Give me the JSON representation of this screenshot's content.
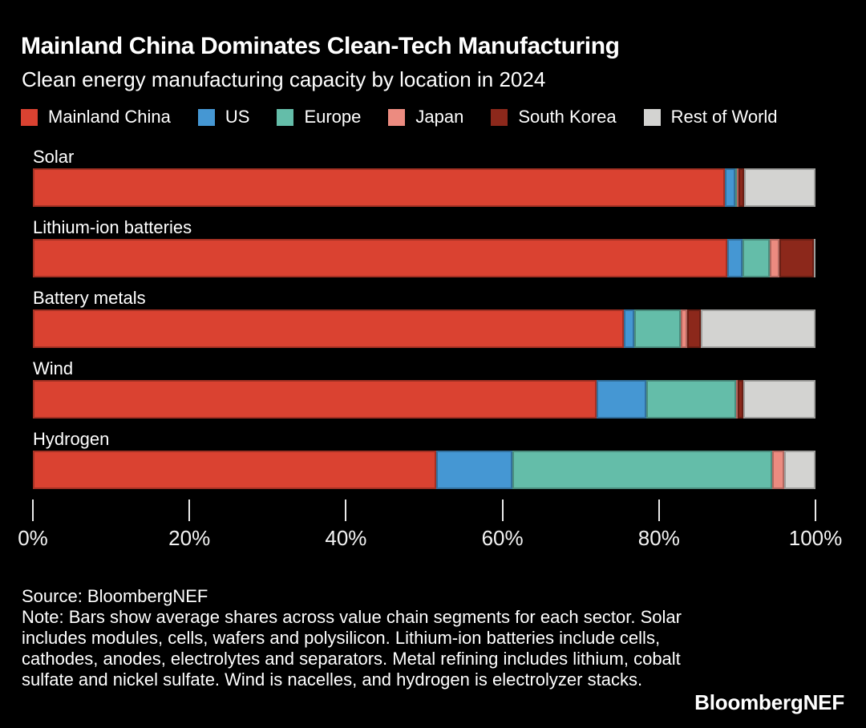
{
  "header": {
    "title": "Mainland China Dominates Clean-Tech Manufacturing",
    "subtitle": "Clean energy manufacturing capacity by location in 2024"
  },
  "colors": {
    "background": "#000000",
    "text": "#FFFFFF",
    "axis": "#EAEAEA",
    "mainland_china": "#DA4231",
    "us": "#4597D3",
    "europe": "#64BDA9",
    "japan": "#EC8B80",
    "south_korea": "#8C281B",
    "rest_of_world": "#D3D3D1"
  },
  "chart_data": {
    "type": "bar",
    "orientation": "horizontal",
    "stacked": true,
    "unit": "%",
    "title": "Mainland China Dominates Clean-Tech Manufacturing",
    "subtitle": "Clean energy manufacturing capacity by location in 2024",
    "legend_position": "top",
    "grid": false,
    "categories": [
      "Solar",
      "Lithium-ion batteries",
      "Battery metals",
      "Wind",
      "Hydrogen"
    ],
    "series": [
      {
        "name": "Mainland China",
        "color": "#DA4231",
        "values": [
          88.4,
          88.7,
          75.5,
          72.0,
          51.5
        ]
      },
      {
        "name": "US",
        "color": "#4597D3",
        "values": [
          1.4,
          2.0,
          1.3,
          6.4,
          9.8
        ]
      },
      {
        "name": "Europe",
        "color": "#64BDA9",
        "values": [
          0.2,
          3.5,
          6.0,
          11.5,
          33.2
        ]
      },
      {
        "name": "Japan",
        "color": "#EC8B80",
        "values": [
          0.2,
          1.2,
          0.8,
          0.2,
          1.5
        ]
      },
      {
        "name": "South Korea",
        "color": "#8C281B",
        "values": [
          0.7,
          4.4,
          1.8,
          0.7,
          0.0
        ]
      },
      {
        "name": "Rest of World",
        "color": "#D3D3D1",
        "values": [
          9.1,
          0.2,
          14.6,
          9.2,
          4.0
        ]
      }
    ],
    "x_axis": {
      "min": 0,
      "max": 100,
      "tick_labels": [
        "0%",
        "20%",
        "40%",
        "60%",
        "80%",
        "100%"
      ]
    }
  },
  "footer": {
    "source": "Source: BloombergNEF",
    "note": "Note: Bars show average shares across value chain segments for each sector. Solar includes modules, cells, wafers and polysilicon. Lithium-ion batteries include cells, cathodes, anodes, electrolytes and separators. Metal refining includes lithium, cobalt sulfate and nickel sulfate. Wind is nacelles, and hydrogen is electrolyzer stacks.",
    "logo": "BloombergNEF"
  }
}
